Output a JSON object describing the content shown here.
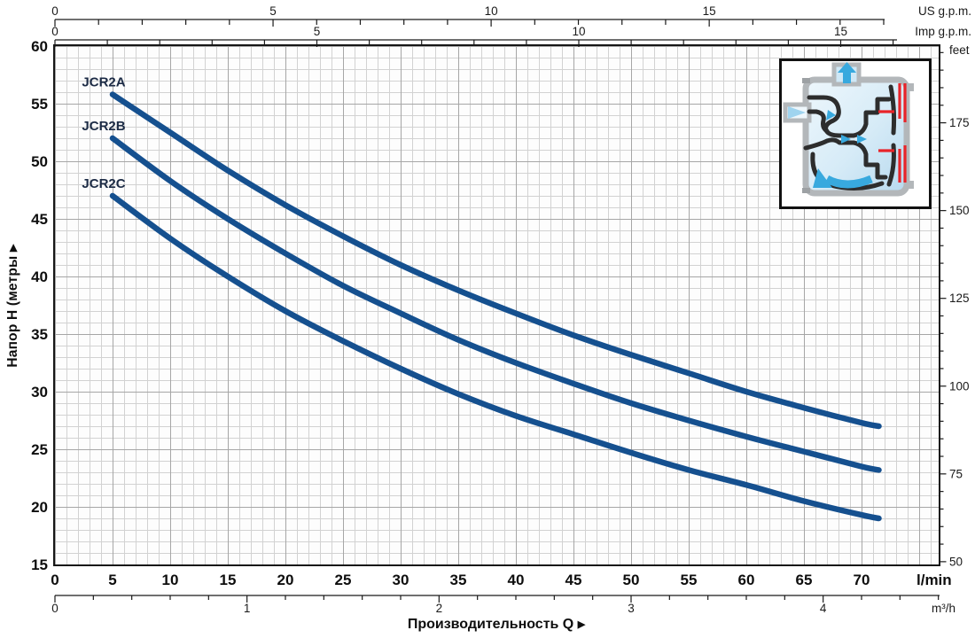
{
  "chart_data": {
    "type": "line",
    "title": "",
    "xlabel": "Производительность Q",
    "ylabel": "Напор H (метры",
    "arrow": "▶",
    "x_unit_primary": "l/min",
    "xlim": [
      0,
      76.7
    ],
    "ylim": [
      15,
      60
    ],
    "grid": "minor 1 l/min × 1 m, major 5 × 5",
    "legend_position": "labels at curve starts",
    "x": [
      5,
      10,
      15,
      20,
      25,
      30,
      35,
      40,
      45,
      50,
      55,
      60,
      65,
      70,
      71.5
    ],
    "series": [
      {
        "name": "JCR2A",
        "values": [
          55.8,
          52.5,
          49.2,
          46.2,
          43.5,
          41.0,
          38.8,
          36.8,
          34.9,
          33.2,
          31.6,
          30.0,
          28.6,
          27.3,
          27.0
        ]
      },
      {
        "name": "JCR2B",
        "values": [
          52.0,
          48.3,
          45.0,
          42.0,
          39.2,
          36.8,
          34.5,
          32.5,
          30.7,
          29.0,
          27.5,
          26.1,
          24.8,
          23.5,
          23.2
        ]
      },
      {
        "name": "JCR2C",
        "values": [
          47.0,
          43.3,
          40.0,
          37.0,
          34.4,
          32.0,
          29.8,
          27.9,
          26.3,
          24.7,
          23.2,
          21.9,
          20.5,
          19.3,
          19.0
        ]
      }
    ]
  },
  "axes": {
    "us_gpm": {
      "label": "US g.p.m.",
      "ticks": [
        0,
        5,
        10,
        15
      ]
    },
    "imp_gpm": {
      "label": "Imp g.p.m.",
      "ticks": [
        0,
        5,
        10,
        15
      ]
    },
    "lmin": {
      "label": "l/min",
      "ticks": [
        0,
        5,
        10,
        15,
        20,
        25,
        30,
        35,
        40,
        45,
        50,
        55,
        60,
        65,
        70
      ]
    },
    "m3h": {
      "label": "m³/h",
      "ticks": [
        0,
        1,
        2,
        3,
        4
      ]
    },
    "meters": {
      "ticks": [
        60,
        55,
        50,
        45,
        40,
        35,
        30,
        25,
        20,
        15
      ]
    },
    "feet": {
      "label": "feet",
      "ticks": [
        175,
        150,
        125,
        100,
        75,
        50
      ]
    }
  },
  "labels": {
    "y_title": "Напор H (метры",
    "y_title_arrow": "▶",
    "x_title": "Производительность Q",
    "x_title_arrow": "▶"
  },
  "colors": {
    "curve": "#15508f",
    "curve_label": "#1c2b45",
    "grid_minor": "#d2d2d2",
    "grid_major": "#a6a6a6",
    "axis_line": "#1a1a1a",
    "inset_red": "#e82329",
    "inset_blue_arrow": "#38a9de",
    "inset_body_blue": "#cfe6f5",
    "inset_casing_gray": "#b3b7ba"
  },
  "inset": {
    "name": "ejector pump cross-section diagram"
  }
}
